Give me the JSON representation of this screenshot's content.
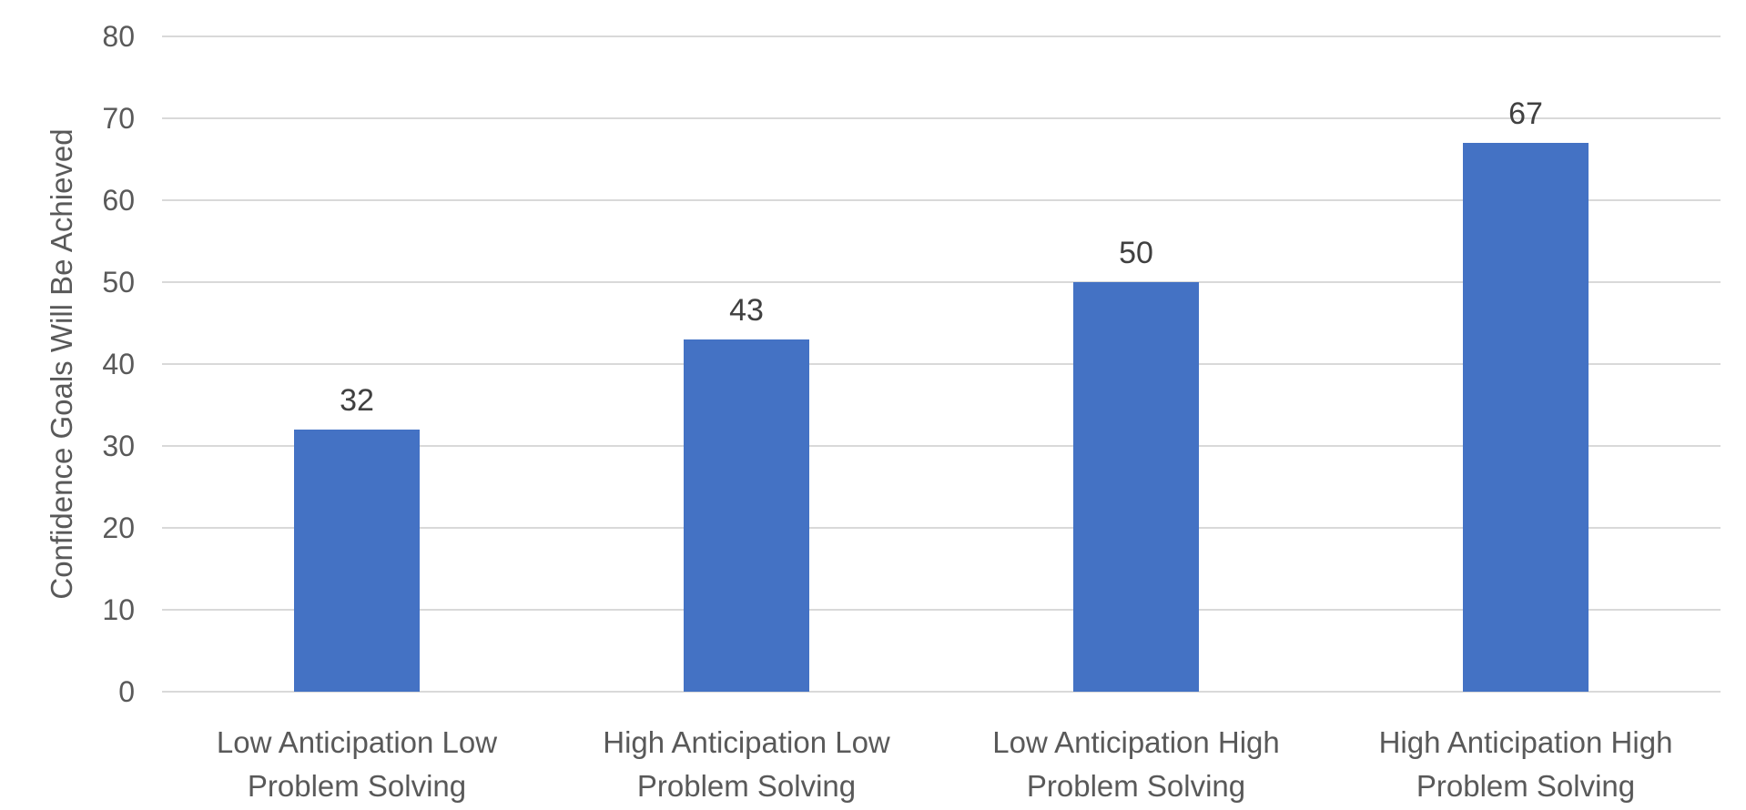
{
  "chart_data": {
    "type": "bar",
    "title": "",
    "xlabel": "",
    "ylabel": "Confidence Goals Will Be Achieved",
    "categories": [
      "Low Anticipation Low Problem Solving",
      "High Anticipation Low Problem Solving",
      "Low Anticipation High Problem Solving",
      "High Anticipation High Problem Solving"
    ],
    "values": [
      32,
      43,
      50,
      67
    ],
    "data_labels": [
      "32",
      "43",
      "50",
      "67"
    ],
    "y_ticks": [
      0,
      10,
      20,
      30,
      40,
      50,
      60,
      70,
      80
    ],
    "ylim": [
      0,
      80
    ],
    "grid": true,
    "legend_position": "none",
    "colors": {
      "bar_fill": "#4472C4",
      "gridline": "#D9D9D9",
      "axis_text": "#595959",
      "data_label_text": "#404040",
      "background": "#FFFFFF"
    }
  }
}
